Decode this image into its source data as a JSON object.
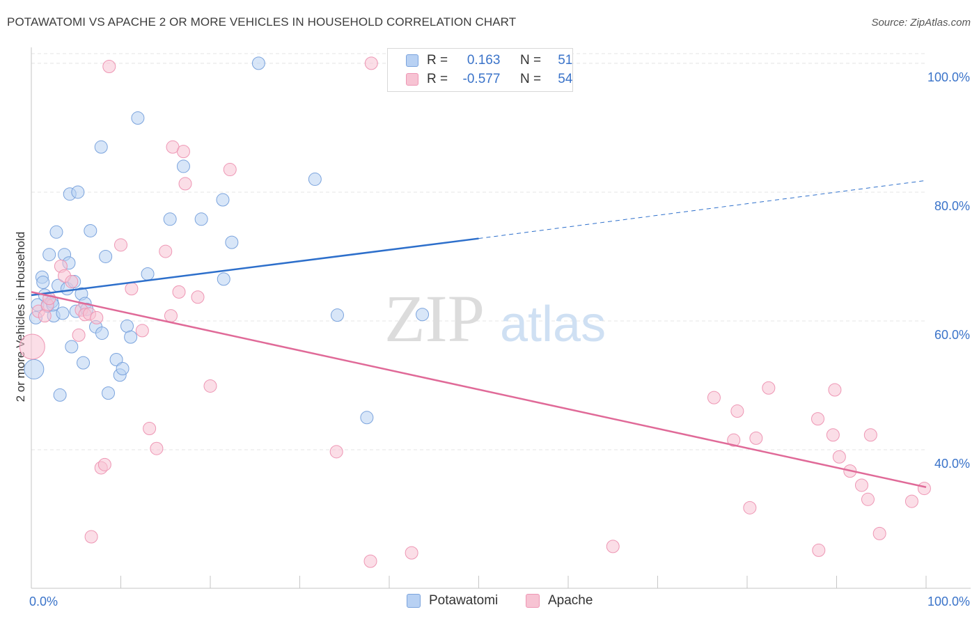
{
  "title": "POTAWATOMI VS APACHE 2 OR MORE VEHICLES IN HOUSEHOLD CORRELATION CHART",
  "source": "Source: ZipAtlas.com",
  "watermark": {
    "zip": "ZIP",
    "atlas": "atlas"
  },
  "legend": {
    "r_label": "R =",
    "n_label": "N =",
    "rows": [
      {
        "r": "0.163",
        "n": "51"
      },
      {
        "r": "-0.577",
        "n": "54"
      }
    ]
  },
  "bottom_legend": [
    "Potawatomi",
    "Apache"
  ],
  "colors": {
    "potawatomi_fill": "#b8d1f3",
    "potawatomi_stroke": "#7aa3dd",
    "potawatomi_line": "#2d6fcb",
    "apache_fill": "#f7c3d3",
    "apache_stroke": "#ee96b4",
    "apache_line": "#e06a98",
    "tick_label": "#3a73c9",
    "grid": "#e4e4e4"
  },
  "chart_data": {
    "type": "scatter",
    "title": "POTAWATOMI VS APACHE 2 OR MORE VEHICLES IN HOUSEHOLD CORRELATION CHART",
    "xlabel": "",
    "ylabel": "2 or more Vehicles in Household",
    "xlim": [
      0,
      100
    ],
    "ylim": [
      18.5,
      101.5
    ],
    "x_tick_labels": [
      "0.0%",
      "100.0%"
    ],
    "y_ticks": [
      40,
      60,
      80,
      100
    ],
    "y_tick_labels": [
      "40.0%",
      "60.0%",
      "80.0%",
      "100.0%"
    ],
    "grid": true,
    "legend_position": "top-center",
    "series": [
      {
        "name": "Potawatomi",
        "r": 0.163,
        "n": 51,
        "trend": {
          "x0": 0,
          "y0": 64.0,
          "x1": 50,
          "y1": 72.8,
          "dashed_to_x": 100,
          "dashed_to_y": 81.8
        },
        "points": [
          [
            0.3,
            52.5,
            14
          ],
          [
            0.5,
            60.5,
            9
          ],
          [
            0.7,
            62.5,
            9
          ],
          [
            1.2,
            66.8,
            9
          ],
          [
            1.3,
            66.0,
            9
          ],
          [
            1.5,
            64.0,
            9
          ],
          [
            1.8,
            62.3,
            9
          ],
          [
            2.0,
            70.3,
            9
          ],
          [
            2.3,
            63.0,
            9
          ],
          [
            2.5,
            60.8,
            9
          ],
          [
            2.8,
            73.8,
            9
          ],
          [
            3.0,
            65.5,
            9
          ],
          [
            3.2,
            48.5,
            9
          ],
          [
            3.5,
            61.2,
            9
          ],
          [
            3.7,
            70.3,
            9
          ],
          [
            4.0,
            65.0,
            9
          ],
          [
            4.2,
            69.0,
            9
          ],
          [
            4.3,
            79.7,
            9
          ],
          [
            4.5,
            56.0,
            9
          ],
          [
            4.8,
            66.1,
            9
          ],
          [
            5.0,
            61.5,
            9
          ],
          [
            5.2,
            80.0,
            9
          ],
          [
            5.6,
            64.2,
            9
          ],
          [
            5.8,
            53.5,
            9
          ],
          [
            6.0,
            62.7,
            9
          ],
          [
            6.6,
            74.0,
            9
          ],
          [
            7.2,
            59.1,
            9
          ],
          [
            7.8,
            87.0,
            9
          ],
          [
            7.9,
            58.1,
            9
          ],
          [
            8.3,
            70.0,
            9
          ],
          [
            8.6,
            48.8,
            9
          ],
          [
            9.5,
            54.0,
            9
          ],
          [
            9.9,
            51.6,
            9
          ],
          [
            10.2,
            52.6,
            9
          ],
          [
            10.7,
            59.2,
            9
          ],
          [
            11.1,
            57.5,
            9
          ],
          [
            11.9,
            91.5,
            9
          ],
          [
            13.0,
            67.3,
            9
          ],
          [
            15.5,
            75.8,
            9
          ],
          [
            17.0,
            84.0,
            9
          ],
          [
            19.0,
            75.8,
            9
          ],
          [
            21.4,
            78.8,
            9
          ],
          [
            21.5,
            66.5,
            9
          ],
          [
            22.4,
            72.2,
            9
          ],
          [
            25.4,
            100.0,
            9
          ],
          [
            31.7,
            82.0,
            9
          ],
          [
            34.2,
            60.9,
            9
          ],
          [
            37.5,
            45.0,
            9
          ],
          [
            43.7,
            61.0,
            9
          ],
          [
            6.2,
            61.8,
            9
          ],
          [
            2.4,
            62.5,
            9
          ]
        ]
      },
      {
        "name": "Apache",
        "r": -0.577,
        "n": 54,
        "trend": {
          "x0": 0,
          "y0": 64.5,
          "x1": 100,
          "y1": 34.2
        },
        "points": [
          [
            0.1,
            56.0,
            18
          ],
          [
            0.8,
            61.5,
            9
          ],
          [
            1.5,
            60.8,
            9
          ],
          [
            1.8,
            62.5,
            9
          ],
          [
            2.0,
            63.5,
            9
          ],
          [
            3.3,
            68.5,
            9
          ],
          [
            3.7,
            67.0,
            9
          ],
          [
            4.5,
            66.1,
            9
          ],
          [
            5.3,
            57.8,
            9
          ],
          [
            5.6,
            61.7,
            9
          ],
          [
            6.0,
            61.0,
            9
          ],
          [
            6.5,
            61.1,
            9
          ],
          [
            6.7,
            26.5,
            9
          ],
          [
            7.3,
            60.5,
            9
          ],
          [
            7.8,
            37.2,
            9
          ],
          [
            8.2,
            37.7,
            9
          ],
          [
            8.7,
            99.5,
            9
          ],
          [
            10.0,
            71.8,
            9
          ],
          [
            11.2,
            65.0,
            9
          ],
          [
            12.4,
            58.5,
            9
          ],
          [
            13.2,
            43.3,
            9
          ],
          [
            14.0,
            40.2,
            9
          ],
          [
            15.0,
            70.8,
            9
          ],
          [
            15.6,
            60.8,
            9
          ],
          [
            15.8,
            87.0,
            9
          ],
          [
            16.5,
            64.5,
            9
          ],
          [
            17.0,
            86.3,
            9
          ],
          [
            17.2,
            81.3,
            9
          ],
          [
            18.6,
            63.7,
            9
          ],
          [
            20.0,
            49.9,
            9
          ],
          [
            22.2,
            83.5,
            9
          ],
          [
            34.1,
            39.7,
            9
          ],
          [
            37.9,
            22.7,
            9
          ],
          [
            38.0,
            100.0,
            9
          ],
          [
            42.5,
            24.0,
            9
          ],
          [
            65.0,
            25.0,
            9
          ],
          [
            76.3,
            48.1,
            9
          ],
          [
            78.5,
            41.5,
            9
          ],
          [
            78.9,
            46.0,
            9
          ],
          [
            80.3,
            31.0,
            9
          ],
          [
            81.0,
            41.8,
            9
          ],
          [
            82.4,
            49.6,
            9
          ],
          [
            87.9,
            44.8,
            9
          ],
          [
            88.0,
            24.4,
            9
          ],
          [
            89.6,
            42.3,
            9
          ],
          [
            89.8,
            49.3,
            9
          ],
          [
            90.3,
            38.9,
            9
          ],
          [
            91.5,
            36.7,
            9
          ],
          [
            92.8,
            34.5,
            9
          ],
          [
            93.5,
            32.3,
            9
          ],
          [
            93.8,
            42.3,
            9
          ],
          [
            94.8,
            27.0,
            9
          ],
          [
            98.4,
            32.0,
            9
          ],
          [
            99.8,
            34.0,
            9
          ]
        ]
      }
    ]
  }
}
